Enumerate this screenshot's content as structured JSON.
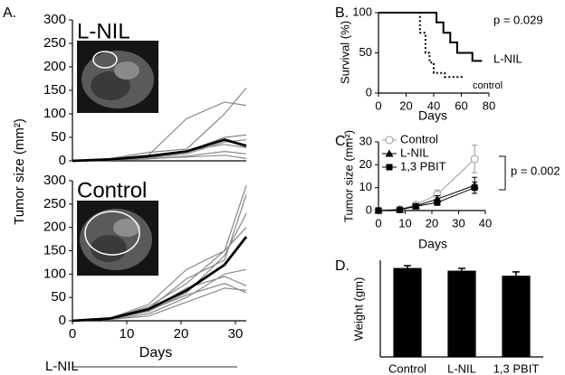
{
  "chart_data": [
    {
      "type": "line",
      "panel": "A.",
      "title": "L-NIL",
      "ylabel": "Tumor size (mm²)",
      "x": [
        0,
        7,
        14,
        21,
        28,
        32
      ],
      "xlim": [
        0,
        32
      ],
      "ylim": [
        0,
        300
      ],
      "yticks": [
        0,
        50,
        100,
        150,
        200,
        250,
        300
      ],
      "series": [
        {
          "color": "#888888",
          "values": [
            0,
            5,
            18,
            25,
            100,
            155
          ]
        },
        {
          "color": "#888888",
          "values": [
            0,
            4,
            12,
            90,
            125,
            118
          ]
        },
        {
          "color": "#888888",
          "values": [
            0,
            3,
            8,
            20,
            50,
            55
          ]
        },
        {
          "color": "#888888",
          "values": [
            0,
            2,
            6,
            15,
            40,
            45
          ]
        },
        {
          "color": "#888888",
          "values": [
            0,
            3,
            10,
            22,
            35,
            28
          ]
        },
        {
          "color": "#888888",
          "values": [
            0,
            1,
            4,
            10,
            20,
            15
          ]
        },
        {
          "color": "#888888",
          "values": [
            0,
            2,
            5,
            8,
            12,
            5
          ]
        },
        {
          "color": "#000000",
          "values": [
            0,
            3,
            10,
            20,
            45,
            32
          ]
        }
      ]
    },
    {
      "type": "line",
      "title": "Control",
      "xlabel": "Days",
      "annotation": "L-NIL",
      "x": [
        0,
        7,
        14,
        21,
        28,
        32
      ],
      "xlim": [
        0,
        32
      ],
      "xticks": [
        0,
        10,
        20,
        30
      ],
      "ylim": [
        0,
        300
      ],
      "yticks": [
        0,
        50,
        100,
        150,
        200,
        250,
        300
      ],
      "series": [
        {
          "color": "#888888",
          "values": [
            0,
            6,
            30,
            80,
            150,
            290
          ]
        },
        {
          "color": "#888888",
          "values": [
            0,
            5,
            25,
            90,
            130,
            270
          ]
        },
        {
          "color": "#888888",
          "values": [
            0,
            4,
            20,
            60,
            140,
            230
          ]
        },
        {
          "color": "#888888",
          "values": [
            0,
            6,
            35,
            110,
            150,
            200
          ]
        },
        {
          "color": "#888888",
          "values": [
            0,
            3,
            15,
            50,
            100,
            110
          ]
        },
        {
          "color": "#888888",
          "values": [
            0,
            4,
            20,
            70,
            95,
            75
          ]
        },
        {
          "color": "#888888",
          "values": [
            0,
            3,
            10,
            40,
            70,
            65
          ]
        },
        {
          "color": "#888888",
          "values": [
            0,
            5,
            22,
            55,
            80,
            60
          ]
        },
        {
          "color": "#000000",
          "values": [
            0,
            5,
            25,
            65,
            120,
            180
          ]
        }
      ]
    },
    {
      "type": "line",
      "panel": "B.",
      "ylabel": "Survival (%)",
      "xlabel": "Days",
      "annotation": "p = 0.029",
      "xlim": [
        0,
        80
      ],
      "xticks": [
        0,
        20,
        40,
        60,
        80
      ],
      "ylim": [
        0,
        100
      ],
      "yticks": [
        0,
        50,
        100
      ],
      "series": [
        {
          "name": "L-NIL",
          "color": "#000000",
          "dash": "solid",
          "x": [
            0,
            42,
            42,
            47,
            47,
            52,
            52,
            57,
            57,
            68,
            68,
            75
          ],
          "values": [
            100,
            100,
            88,
            88,
            75,
            75,
            63,
            63,
            50,
            50,
            40,
            40
          ]
        },
        {
          "name": "control",
          "color": "#000000",
          "dash": "dotted",
          "x": [
            0,
            30,
            30,
            34,
            34,
            37,
            37,
            40,
            40,
            48,
            48,
            62
          ],
          "values": [
            100,
            100,
            75,
            75,
            50,
            50,
            38,
            38,
            25,
            25,
            20,
            20
          ]
        }
      ]
    },
    {
      "type": "line",
      "panel": "C.",
      "ylabel": "Tumor size (mm²)",
      "xlabel": "Days",
      "annotation": "p = 0.002",
      "legend": "upper left",
      "x": [
        0,
        8,
        14,
        22,
        36
      ],
      "xlim": [
        0,
        40
      ],
      "xticks": [
        0,
        10,
        20,
        30,
        40
      ],
      "ylim": [
        0,
        30
      ],
      "yticks": [
        0,
        10,
        20,
        30
      ],
      "series": [
        {
          "name": "Control",
          "color": "#999999",
          "marker": "circle-open",
          "values": [
            0,
            0.5,
            2.5,
            7,
            22.5
          ],
          "errors": [
            0,
            0.5,
            1,
            2,
            6
          ]
        },
        {
          "name": "L-NIL",
          "color": "#000000",
          "marker": "triangle",
          "values": [
            0,
            0.4,
            2,
            5,
            11
          ],
          "errors": [
            0,
            0.3,
            0.8,
            1.5,
            3.5
          ]
        },
        {
          "name": "1,3 PBIT",
          "color": "#000000",
          "marker": "square",
          "values": [
            0,
            0.3,
            1.8,
            3.5,
            10
          ],
          "errors": [
            0,
            0.3,
            0.6,
            1.2,
            2.5
          ]
        }
      ]
    },
    {
      "type": "bar",
      "panel": "D.",
      "ylabel": "Weight (gm)",
      "categories": [
        "Control",
        "L-NIL",
        "1,3 PBIT"
      ],
      "values": [
        23,
        22.3,
        21
      ],
      "errors": [
        0.6,
        0.6,
        1.0
      ],
      "color": "#000000",
      "ylim": [
        0,
        25
      ]
    }
  ]
}
